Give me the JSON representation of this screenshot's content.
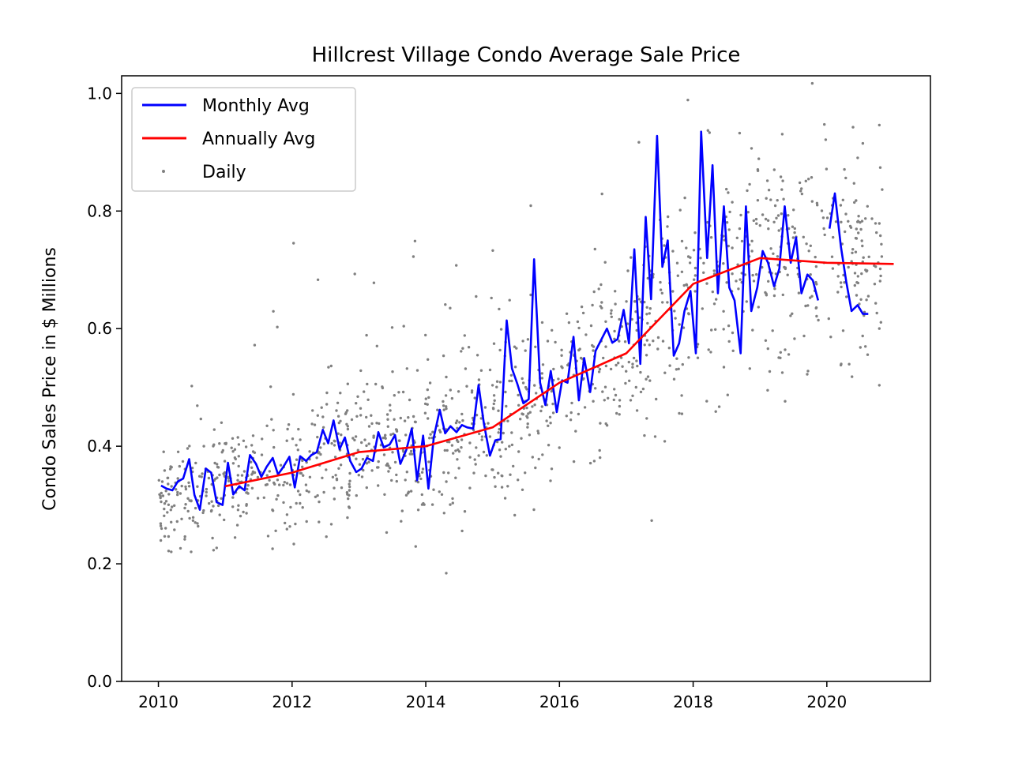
{
  "chart_data": {
    "type": "line",
    "title": "Hillcrest Village Condo Average Sale Price",
    "xlabel": "",
    "ylabel": "Condo Sales Price in $ Millions",
    "xlim": [
      2009.45,
      2021.55
    ],
    "ylim": [
      0.0,
      1.03
    ],
    "x_ticks": [
      2010,
      2012,
      2014,
      2016,
      2018,
      2020
    ],
    "x_tick_labels": [
      "2010",
      "2012",
      "2014",
      "2016",
      "2018",
      "2020"
    ],
    "y_ticks": [
      0.0,
      0.2,
      0.4,
      0.6,
      0.8,
      1.0
    ],
    "y_tick_labels": [
      "0.0",
      "0.2",
      "0.4",
      "0.6",
      "0.8",
      "1.0"
    ],
    "grid": false,
    "legend_position": "top-left",
    "legend": [
      {
        "label": "Monthly Avg",
        "color": "#0000ff",
        "kind": "line"
      },
      {
        "label": "Annually Avg",
        "color": "#ff0000",
        "kind": "line"
      },
      {
        "label": "Daily",
        "color": "#808080",
        "kind": "marker"
      }
    ],
    "series": [
      {
        "name": "Monthly Avg",
        "color": "#0000ff",
        "segments": [
          {
            "x": [
              2010.04,
              2010.12,
              2010.21,
              2010.29,
              2010.37,
              2010.46,
              2010.54,
              2010.62,
              2010.71,
              2010.79,
              2010.87,
              2010.96,
              2011.04,
              2011.12,
              2011.21,
              2011.29,
              2011.37,
              2011.46,
              2011.54,
              2011.62,
              2011.71,
              2011.79,
              2011.87,
              2011.96,
              2012.04,
              2012.12,
              2012.21,
              2012.29,
              2012.37,
              2012.46,
              2012.54,
              2012.62,
              2012.71,
              2012.79,
              2012.87,
              2012.96,
              2013.04,
              2013.12,
              2013.21,
              2013.29,
              2013.37,
              2013.46,
              2013.54,
              2013.62,
              2013.71,
              2013.79,
              2013.87,
              2013.96,
              2014.04,
              2014.12,
              2014.21,
              2014.29,
              2014.37,
              2014.46,
              2014.54,
              2014.62,
              2014.71,
              2014.79,
              2014.87,
              2014.96,
              2015.04,
              2015.12,
              2015.21,
              2015.29,
              2015.37,
              2015.46,
              2015.54,
              2015.62,
              2015.71,
              2015.79,
              2015.87,
              2015.96,
              2016.04,
              2016.12,
              2016.21,
              2016.29,
              2016.37,
              2016.46,
              2016.54,
              2016.62,
              2016.71,
              2016.79,
              2016.87,
              2016.96,
              2017.04,
              2017.12,
              2017.21,
              2017.29,
              2017.37,
              2017.46,
              2017.54,
              2017.62,
              2017.71,
              2017.79,
              2017.87,
              2017.96,
              2018.04,
              2018.12,
              2018.21,
              2018.29,
              2018.37,
              2018.46,
              2018.54,
              2018.62,
              2018.71,
              2018.79,
              2018.87,
              2018.96,
              2019.04,
              2019.12,
              2019.21,
              2019.29,
              2019.37,
              2019.46,
              2019.54,
              2019.62,
              2019.71,
              2019.79,
              2019.87
            ],
            "y": [
              0.333,
              0.328,
              0.325,
              0.34,
              0.345,
              0.378,
              0.317,
              0.292,
              0.362,
              0.355,
              0.305,
              0.3,
              0.372,
              0.318,
              0.332,
              0.325,
              0.385,
              0.37,
              0.348,
              0.365,
              0.38,
              0.352,
              0.365,
              0.382,
              0.33,
              0.383,
              0.375,
              0.385,
              0.39,
              0.428,
              0.405,
              0.444,
              0.395,
              0.415,
              0.375,
              0.356,
              0.362,
              0.38,
              0.375,
              0.424,
              0.398,
              0.403,
              0.419,
              0.37,
              0.394,
              0.43,
              0.342,
              0.418,
              0.328,
              0.415,
              0.462,
              0.422,
              0.434,
              0.424,
              0.436,
              0.432,
              0.43,
              0.504,
              0.438,
              0.384,
              0.41,
              0.412,
              0.614,
              0.532,
              0.506,
              0.473,
              0.48,
              0.718,
              0.508,
              0.47,
              0.528,
              0.458,
              0.512,
              0.508,
              0.586,
              0.478,
              0.55,
              0.492,
              0.562,
              0.58,
              0.6,
              0.576,
              0.582,
              0.632,
              0.575,
              0.735,
              0.54,
              0.79,
              0.65,
              0.928,
              0.705,
              0.75,
              0.554,
              0.575,
              0.63,
              0.664,
              0.558,
              0.935,
              0.72,
              0.878,
              0.66,
              0.808,
              0.67,
              0.648,
              0.558,
              0.808,
              0.63,
              0.67,
              0.732,
              0.712,
              0.672,
              0.702,
              0.808,
              0.712,
              0.755,
              0.66,
              0.692,
              0.682,
              0.648
            ]
          },
          {
            "x": [
              2020.04,
              2020.12,
              2020.21,
              2020.29,
              2020.37,
              2020.46,
              2020.54,
              2020.62
            ],
            "y": [
              0.77,
              0.83,
              0.74,
              0.68,
              0.63,
              0.64,
              0.625,
              0.625
            ]
          }
        ]
      },
      {
        "name": "Annually Avg",
        "color": "#ff0000",
        "x": [
          2011.0,
          2012.0,
          2013.0,
          2014.0,
          2015.0,
          2016.0,
          2017.0,
          2018.0,
          2019.0,
          2020.0,
          2021.0
        ],
        "y": [
          0.332,
          0.355,
          0.39,
          0.4,
          0.432,
          0.508,
          0.558,
          0.676,
          0.72,
          0.712,
          0.71
        ]
      }
    ],
    "daily": {
      "name": "Daily",
      "color": "#808080",
      "x_start": 2010.0,
      "x_end": 2020.83,
      "count": 1300
    }
  }
}
